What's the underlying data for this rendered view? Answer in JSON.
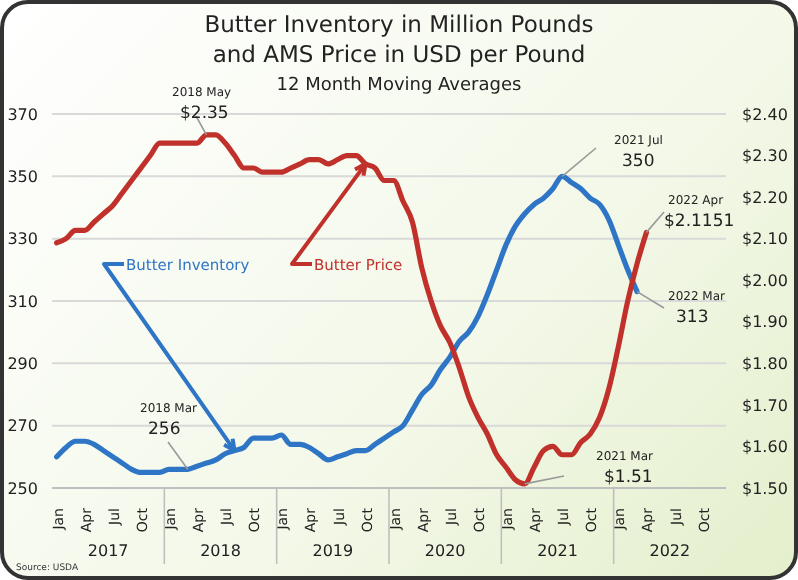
{
  "chart_data": {
    "type": "line",
    "title": "Butter Inventory in Million Pounds\nand AMS Price in USD per Pound",
    "subtitle": "12 Month Moving Averages",
    "categories": [
      "Jan",
      null,
      null,
      "Apr",
      null,
      null,
      "Jul",
      null,
      null,
      "Oct",
      null,
      null,
      "Jan",
      null,
      null,
      "Apr",
      null,
      null,
      "Jul",
      null,
      null,
      "Oct",
      null,
      null,
      "Jan",
      null,
      null,
      "Apr",
      null,
      null,
      "Jul",
      null,
      null,
      "Oct",
      null,
      null,
      "Jan",
      null,
      null,
      "Apr",
      null,
      null,
      "Jul",
      null,
      null,
      "Oct",
      null,
      null,
      "Jan",
      null,
      null,
      "Apr",
      null,
      null,
      "Jul",
      null,
      null,
      "Oct",
      null,
      null,
      "Jan",
      null,
      null,
      "Apr",
      null,
      null,
      "Jul",
      null,
      null,
      "Oct",
      null,
      null
    ],
    "series": [
      {
        "name": "Butter Inventory",
        "color": "#2e75c6",
        "values": [
          260,
          263,
          265,
          265,
          264,
          262,
          260,
          258,
          256,
          255,
          255,
          255,
          256,
          256,
          256,
          257,
          258,
          259,
          261,
          262,
          263,
          266,
          266,
          266,
          267,
          264,
          264,
          263,
          261,
          259,
          260,
          261,
          262,
          262,
          264,
          266,
          268,
          270,
          275,
          280,
          283,
          288,
          292,
          297,
          300,
          305,
          312,
          320,
          328,
          334,
          338,
          341,
          343,
          346,
          350,
          348,
          346,
          343,
          341,
          336,
          328,
          320,
          313,
          null,
          null,
          null,
          null,
          null,
          null,
          null,
          null,
          null
        ]
      },
      {
        "name": "Butter Price",
        "color": "#c0312b",
        "axis": "y2",
        "values": [
          2.09,
          2.1,
          2.12,
          2.12,
          2.14,
          2.16,
          2.18,
          2.21,
          2.24,
          2.27,
          2.3,
          2.33,
          2.33,
          2.33,
          2.33,
          2.33,
          2.35,
          2.35,
          2.33,
          2.3,
          2.27,
          2.27,
          2.26,
          2.26,
          2.26,
          2.27,
          2.28,
          2.29,
          2.29,
          2.28,
          2.29,
          2.3,
          2.3,
          2.28,
          2.27,
          2.24,
          2.24,
          2.19,
          2.14,
          2.03,
          1.95,
          1.89,
          1.85,
          1.79,
          1.72,
          1.67,
          1.63,
          1.58,
          1.55,
          1.52,
          1.51,
          1.55,
          1.59,
          1.6,
          1.58,
          1.58,
          1.61,
          1.63,
          1.67,
          1.74,
          1.84,
          1.95,
          2.04,
          2.1151,
          null,
          null,
          null,
          null,
          null,
          null,
          null,
          null
        ]
      }
    ],
    "ylim": [
      250,
      370
    ],
    "yticks": [
      250,
      270,
      290,
      310,
      330,
      350,
      370
    ],
    "y2lim": [
      1.5,
      2.4
    ],
    "y2ticks": [
      {
        "value": 1.5,
        "label": "$1.50"
      },
      {
        "value": 1.6,
        "label": "$1.60"
      },
      {
        "value": 1.7,
        "label": "$1.70"
      },
      {
        "value": 1.8,
        "label": "$1.80"
      },
      {
        "value": 1.9,
        "label": "$1.90"
      },
      {
        "value": 2.0,
        "label": "$2.00"
      },
      {
        "value": 2.1,
        "label": "$2.10"
      },
      {
        "value": 2.2,
        "label": "$2.20"
      },
      {
        "value": 2.3,
        "label": "$2.30"
      },
      {
        "value": 2.4,
        "label": "$2.40"
      }
    ],
    "grid": "y",
    "legend": false,
    "annotations": [
      "2018 May\n$2.35",
      "2018 Mar\n256",
      "2021 Jul\n350",
      "2022 Apr\n$2.1151",
      "2022 Mar\n313",
      "2021 Mar\n$1.51",
      "Source: USDA",
      "2017",
      "2018",
      "2019",
      "2020",
      "2021",
      "2022"
    ]
  }
}
